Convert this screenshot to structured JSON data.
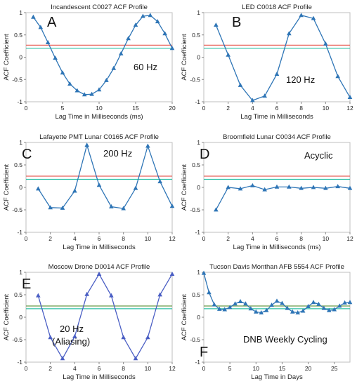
{
  "chart_data": [
    {
      "type": "line",
      "title": "Incandescent C0027 ACF Profile",
      "xlabel": "Lag Time in Milliseconds (ms)",
      "ylabel": "ACF Coefficient",
      "xlim": [
        0,
        20
      ],
      "ylim": [
        -1,
        1
      ],
      "xticks": [
        0,
        5,
        10,
        15,
        20
      ],
      "yticks": [
        1,
        0.5,
        0,
        -0.5,
        -1
      ],
      "panel_letter": "A",
      "annotations": [
        "60 Hz"
      ],
      "threshold_lines": [
        {
          "y": 0.27,
          "color": "#e8625a"
        },
        {
          "y": 0.2,
          "color": "#2bbfa5"
        }
      ],
      "series": [
        {
          "x": [
            1,
            2,
            3,
            4,
            5,
            6,
            7,
            8,
            9,
            10,
            11,
            12,
            13,
            14,
            15,
            16,
            17,
            18,
            19,
            20
          ],
          "y": [
            0.9,
            0.67,
            0.33,
            -0.02,
            -0.35,
            -0.6,
            -0.75,
            -0.84,
            -0.83,
            -0.73,
            -0.52,
            -0.25,
            0.08,
            0.42,
            0.72,
            0.92,
            0.94,
            0.8,
            0.53,
            0.2
          ],
          "color": "#2e75b6"
        }
      ]
    },
    {
      "type": "line",
      "title": "LED C0018 ACF Profile",
      "xlabel": "Lag Time in Milliseconds",
      "ylabel": "ACF Coefficient",
      "xlim": [
        0,
        12
      ],
      "ylim": [
        -1,
        1
      ],
      "xticks": [
        0,
        2,
        4,
        6,
        8,
        10,
        12
      ],
      "yticks": [
        1,
        0.5,
        0,
        -0.5,
        -1
      ],
      "panel_letter": "B",
      "annotations": [
        "120 Hz"
      ],
      "threshold_lines": [
        {
          "y": 0.27,
          "color": "#e8625a"
        },
        {
          "y": 0.2,
          "color": "#2bbfa5"
        }
      ],
      "series": [
        {
          "x": [
            1,
            2,
            3,
            4,
            5,
            6,
            7,
            8,
            9,
            10,
            11,
            12
          ],
          "y": [
            0.72,
            0.05,
            -0.63,
            -0.97,
            -0.87,
            -0.38,
            0.53,
            0.94,
            0.87,
            0.3,
            -0.43,
            -0.9
          ],
          "color": "#2e75b6"
        }
      ]
    },
    {
      "type": "line",
      "title": "Lafayette PMT Lunar C0165 ACF Profile",
      "xlabel": "Lag Time in Milliseconds",
      "ylabel": "ACF Coefficient",
      "xlim": [
        0,
        12
      ],
      "ylim": [
        -1,
        1
      ],
      "xticks": [
        0,
        2,
        4,
        6,
        8,
        10,
        12
      ],
      "yticks": [
        1,
        0.5,
        0,
        -0.5,
        -1
      ],
      "panel_letter": "C",
      "annotations": [
        "200 Hz"
      ],
      "threshold_lines": [
        {
          "y": 0.25,
          "color": "#e8625a"
        },
        {
          "y": 0.18,
          "color": "#2bbfa5"
        }
      ],
      "series": [
        {
          "x": [
            1,
            2,
            3,
            4,
            5,
            6,
            7,
            8,
            9,
            10,
            11,
            12
          ],
          "y": [
            -0.03,
            -0.45,
            -0.46,
            -0.08,
            0.94,
            0.05,
            -0.43,
            -0.47,
            -0.02,
            0.92,
            0.13,
            -0.42
          ],
          "color": "#2e75b6"
        }
      ]
    },
    {
      "type": "line",
      "title": "Broomfield Lunar C0034 ACF Profile",
      "xlabel": "Lag Time in Milliseconds (ms)",
      "ylabel": "ACF Coefficient",
      "xlim": [
        0,
        12
      ],
      "ylim": [
        -1,
        1
      ],
      "xticks": [
        0,
        2,
        4,
        6,
        8,
        10,
        12
      ],
      "yticks": [
        1,
        0.5,
        0,
        -0.5,
        -1
      ],
      "panel_letter": "D",
      "annotations": [
        "Acyclic"
      ],
      "threshold_lines": [
        {
          "y": 0.25,
          "color": "#e8625a"
        },
        {
          "y": 0.18,
          "color": "#2bbfa5"
        }
      ],
      "series": [
        {
          "x": [
            1,
            2,
            3,
            4,
            5,
            6,
            7,
            8,
            9,
            10,
            11,
            12
          ],
          "y": [
            -0.5,
            0.0,
            -0.03,
            0.04,
            -0.05,
            0.01,
            0.01,
            -0.02,
            0.0,
            -0.02,
            0.02,
            -0.02
          ],
          "color": "#2e75b6"
        }
      ]
    },
    {
      "type": "line",
      "title": "Moscow Drone D0014 ACF Profile",
      "xlabel": "Lag Time in Milliseconds",
      "ylabel": "ACF Coefficient",
      "xlim": [
        0,
        12
      ],
      "ylim": [
        -1,
        1
      ],
      "xticks": [
        0,
        2,
        4,
        6,
        8,
        10,
        12
      ],
      "yticks": [
        1,
        0.5,
        0,
        -0.5,
        -1
      ],
      "panel_letter": "E",
      "annotations": [
        "20 Hz",
        "(Aliasing)"
      ],
      "threshold_lines": [
        {
          "y": 0.25,
          "color": "#6a9a4a"
        },
        {
          "y": 0.19,
          "color": "#2bbfa5"
        }
      ],
      "series": [
        {
          "x": [
            1,
            2,
            3,
            4,
            5,
            6,
            7,
            8,
            9,
            10,
            11,
            12
          ],
          "y": [
            0.48,
            -0.45,
            -0.92,
            -0.43,
            0.51,
            0.96,
            0.48,
            -0.45,
            -0.92,
            -0.45,
            0.5,
            0.96
          ],
          "color": "#4a5ec4"
        }
      ]
    },
    {
      "type": "line",
      "title": "Tucson Davis Monthan AFB 5554 ACF Profile",
      "xlabel": "Lag Time in Days",
      "ylabel": "ACF Coefficient",
      "xlim": [
        0,
        28
      ],
      "ylim": [
        -1,
        1
      ],
      "xticks": [
        0,
        5,
        10,
        15,
        20,
        25
      ],
      "yticks": [
        1,
        0.5,
        0,
        -0.5,
        -1
      ],
      "panel_letter": "F",
      "annotations": [
        "DNB Weekly Cycling"
      ],
      "threshold_lines": [
        {
          "y": 0.25,
          "color": "#6a9a4a"
        },
        {
          "y": 0.19,
          "color": "#2bbfa5"
        }
      ],
      "series": [
        {
          "x": [
            0,
            1,
            2,
            3,
            4,
            5,
            6,
            7,
            8,
            9,
            10,
            11,
            12,
            13,
            14,
            15,
            16,
            17,
            18,
            19,
            20,
            21,
            22,
            23,
            24,
            25,
            26,
            27,
            28
          ],
          "y": [
            0.98,
            0.55,
            0.28,
            0.18,
            0.17,
            0.22,
            0.3,
            0.35,
            0.3,
            0.19,
            0.12,
            0.1,
            0.15,
            0.27,
            0.36,
            0.31,
            0.2,
            0.12,
            0.1,
            0.14,
            0.24,
            0.33,
            0.29,
            0.2,
            0.15,
            0.17,
            0.25,
            0.32,
            0.33
          ],
          "color": "#2e75b6"
        }
      ]
    }
  ]
}
